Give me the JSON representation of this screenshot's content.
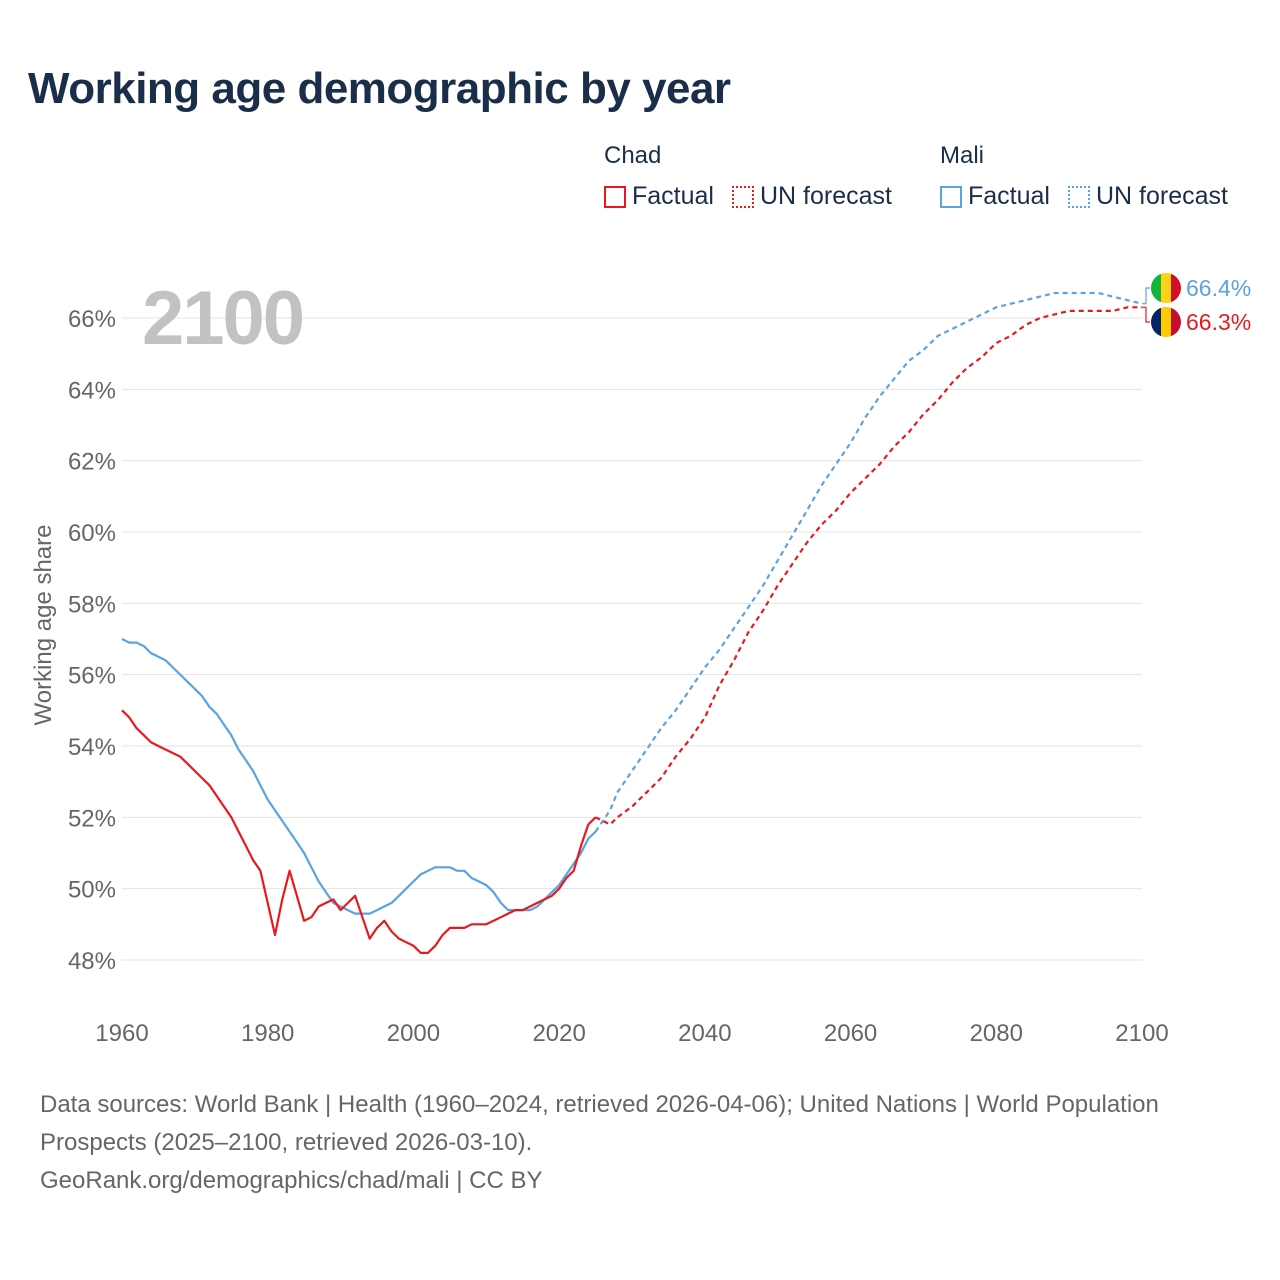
{
  "title": "Working age demographic by year",
  "legend": {
    "groups": [
      {
        "country": "Chad",
        "factual": "Factual",
        "forecast": "UN forecast",
        "color": "#e8191e"
      },
      {
        "country": "Mali",
        "factual": "Factual",
        "forecast": "UN forecast",
        "color": "#5ba3e0"
      }
    ]
  },
  "footer": {
    "sources": "Data sources: World Bank | Health (1960–2024, retrieved 2026-04-06); United Nations | World Population Prospects (2025–2100, retrieved 2026-03-10).",
    "credit": "GeoRank.org/demographics/chad/mali | CC BY"
  },
  "chart_data": {
    "type": "line",
    "title": "Working age demographic by year",
    "ylabel": "Working age share",
    "xlabel": "",
    "year_watermark": "2100",
    "xlim": [
      1960,
      2100
    ],
    "ylim": [
      47,
      67
    ],
    "xticks": [
      1960,
      1980,
      2000,
      2020,
      2040,
      2060,
      2080,
      2100
    ],
    "yticks": [
      48,
      50,
      52,
      54,
      56,
      58,
      60,
      62,
      64,
      66
    ],
    "ytick_labels": [
      "48%",
      "50%",
      "52%",
      "54%",
      "56%",
      "58%",
      "60%",
      "62%",
      "64%",
      "66%"
    ],
    "grid": true,
    "series": [
      {
        "name": "Chad",
        "color": "#e8191e",
        "end_label": "66.3%",
        "factual": [
          [
            1960,
            55.0
          ],
          [
            1961,
            54.8
          ],
          [
            1962,
            54.5
          ],
          [
            1963,
            54.3
          ],
          [
            1964,
            54.1
          ],
          [
            1965,
            54.0
          ],
          [
            1966,
            53.9
          ],
          [
            1967,
            53.8
          ],
          [
            1968,
            53.7
          ],
          [
            1969,
            53.5
          ],
          [
            1970,
            53.3
          ],
          [
            1971,
            53.1
          ],
          [
            1972,
            52.9
          ],
          [
            1973,
            52.6
          ],
          [
            1974,
            52.3
          ],
          [
            1975,
            52.0
          ],
          [
            1976,
            51.6
          ],
          [
            1977,
            51.2
          ],
          [
            1978,
            50.8
          ],
          [
            1979,
            50.5
          ],
          [
            1980,
            49.6
          ],
          [
            1981,
            48.7
          ],
          [
            1982,
            49.7
          ],
          [
            1983,
            50.5
          ],
          [
            1984,
            49.8
          ],
          [
            1985,
            49.1
          ],
          [
            1986,
            49.2
          ],
          [
            1987,
            49.5
          ],
          [
            1988,
            49.6
          ],
          [
            1989,
            49.7
          ],
          [
            1990,
            49.4
          ],
          [
            1991,
            49.6
          ],
          [
            1992,
            49.8
          ],
          [
            1993,
            49.2
          ],
          [
            1994,
            48.6
          ],
          [
            1995,
            48.9
          ],
          [
            1996,
            49.1
          ],
          [
            1997,
            48.8
          ],
          [
            1998,
            48.6
          ],
          [
            1999,
            48.5
          ],
          [
            2000,
            48.4
          ],
          [
            2001,
            48.2
          ],
          [
            2002,
            48.2
          ],
          [
            2003,
            48.4
          ],
          [
            2004,
            48.7
          ],
          [
            2005,
            48.9
          ],
          [
            2006,
            48.9
          ],
          [
            2007,
            48.9
          ],
          [
            2008,
            49.0
          ],
          [
            2009,
            49.0
          ],
          [
            2010,
            49.0
          ],
          [
            2011,
            49.1
          ],
          [
            2012,
            49.2
          ],
          [
            2013,
            49.3
          ],
          [
            2014,
            49.4
          ],
          [
            2015,
            49.4
          ],
          [
            2016,
            49.5
          ],
          [
            2017,
            49.6
          ],
          [
            2018,
            49.7
          ],
          [
            2019,
            49.8
          ],
          [
            2020,
            50.0
          ],
          [
            2021,
            50.3
          ],
          [
            2022,
            50.5
          ],
          [
            2023,
            51.2
          ],
          [
            2024,
            51.8
          ],
          [
            2025,
            52.0
          ]
        ],
        "forecast": [
          [
            2025,
            52.0
          ],
          [
            2026,
            51.9
          ],
          [
            2027,
            51.8
          ],
          [
            2028,
            52.0
          ],
          [
            2030,
            52.3
          ],
          [
            2032,
            52.7
          ],
          [
            2034,
            53.1
          ],
          [
            2036,
            53.7
          ],
          [
            2038,
            54.2
          ],
          [
            2040,
            54.8
          ],
          [
            2042,
            55.7
          ],
          [
            2044,
            56.4
          ],
          [
            2046,
            57.2
          ],
          [
            2048,
            57.8
          ],
          [
            2050,
            58.5
          ],
          [
            2052,
            59.1
          ],
          [
            2054,
            59.7
          ],
          [
            2056,
            60.2
          ],
          [
            2058,
            60.6
          ],
          [
            2060,
            61.1
          ],
          [
            2062,
            61.5
          ],
          [
            2064,
            61.9
          ],
          [
            2066,
            62.4
          ],
          [
            2068,
            62.8
          ],
          [
            2070,
            63.3
          ],
          [
            2072,
            63.7
          ],
          [
            2074,
            64.2
          ],
          [
            2076,
            64.6
          ],
          [
            2078,
            64.9
          ],
          [
            2080,
            65.3
          ],
          [
            2082,
            65.5
          ],
          [
            2084,
            65.8
          ],
          [
            2086,
            66.0
          ],
          [
            2088,
            66.1
          ],
          [
            2090,
            66.2
          ],
          [
            2092,
            66.2
          ],
          [
            2094,
            66.2
          ],
          [
            2096,
            66.2
          ],
          [
            2098,
            66.3
          ],
          [
            2100,
            66.3
          ]
        ]
      },
      {
        "name": "Mali",
        "color": "#5ba3e0",
        "end_label": "66.4%",
        "factual": [
          [
            1960,
            57.0
          ],
          [
            1961,
            56.9
          ],
          [
            1962,
            56.9
          ],
          [
            1963,
            56.8
          ],
          [
            1964,
            56.6
          ],
          [
            1965,
            56.5
          ],
          [
            1966,
            56.4
          ],
          [
            1967,
            56.2
          ],
          [
            1968,
            56.0
          ],
          [
            1969,
            55.8
          ],
          [
            1970,
            55.6
          ],
          [
            1971,
            55.4
          ],
          [
            1972,
            55.1
          ],
          [
            1973,
            54.9
          ],
          [
            1974,
            54.6
          ],
          [
            1975,
            54.3
          ],
          [
            1976,
            53.9
          ],
          [
            1977,
            53.6
          ],
          [
            1978,
            53.3
          ],
          [
            1979,
            52.9
          ],
          [
            1980,
            52.5
          ],
          [
            1981,
            52.2
          ],
          [
            1982,
            51.9
          ],
          [
            1983,
            51.6
          ],
          [
            1984,
            51.3
          ],
          [
            1985,
            51.0
          ],
          [
            1986,
            50.6
          ],
          [
            1987,
            50.2
          ],
          [
            1988,
            49.9
          ],
          [
            1989,
            49.6
          ],
          [
            1990,
            49.5
          ],
          [
            1991,
            49.4
          ],
          [
            1992,
            49.3
          ],
          [
            1993,
            49.3
          ],
          [
            1994,
            49.3
          ],
          [
            1995,
            49.4
          ],
          [
            1996,
            49.5
          ],
          [
            1997,
            49.6
          ],
          [
            1998,
            49.8
          ],
          [
            1999,
            50.0
          ],
          [
            2000,
            50.2
          ],
          [
            2001,
            50.4
          ],
          [
            2002,
            50.5
          ],
          [
            2003,
            50.6
          ],
          [
            2004,
            50.6
          ],
          [
            2005,
            50.6
          ],
          [
            2006,
            50.5
          ],
          [
            2007,
            50.5
          ],
          [
            2008,
            50.3
          ],
          [
            2009,
            50.2
          ],
          [
            2010,
            50.1
          ],
          [
            2011,
            49.9
          ],
          [
            2012,
            49.6
          ],
          [
            2013,
            49.4
          ],
          [
            2014,
            49.4
          ],
          [
            2015,
            49.4
          ],
          [
            2016,
            49.4
          ],
          [
            2017,
            49.5
          ],
          [
            2018,
            49.7
          ],
          [
            2019,
            49.9
          ],
          [
            2020,
            50.1
          ],
          [
            2021,
            50.4
          ],
          [
            2022,
            50.7
          ],
          [
            2023,
            51.0
          ],
          [
            2024,
            51.4
          ],
          [
            2025,
            51.6
          ]
        ],
        "forecast": [
          [
            2025,
            51.6
          ],
          [
            2026,
            51.9
          ],
          [
            2027,
            52.2
          ],
          [
            2028,
            52.7
          ],
          [
            2030,
            53.3
          ],
          [
            2032,
            53.9
          ],
          [
            2034,
            54.5
          ],
          [
            2036,
            55.0
          ],
          [
            2038,
            55.6
          ],
          [
            2040,
            56.2
          ],
          [
            2042,
            56.7
          ],
          [
            2044,
            57.3
          ],
          [
            2046,
            57.9
          ],
          [
            2048,
            58.5
          ],
          [
            2050,
            59.2
          ],
          [
            2052,
            59.9
          ],
          [
            2054,
            60.6
          ],
          [
            2056,
            61.3
          ],
          [
            2058,
            61.9
          ],
          [
            2060,
            62.5
          ],
          [
            2062,
            63.2
          ],
          [
            2064,
            63.8
          ],
          [
            2066,
            64.3
          ],
          [
            2068,
            64.8
          ],
          [
            2070,
            65.1
          ],
          [
            2072,
            65.5
          ],
          [
            2074,
            65.7
          ],
          [
            2076,
            65.9
          ],
          [
            2078,
            66.1
          ],
          [
            2080,
            66.3
          ],
          [
            2082,
            66.4
          ],
          [
            2084,
            66.5
          ],
          [
            2086,
            66.6
          ],
          [
            2088,
            66.7
          ],
          [
            2090,
            66.7
          ],
          [
            2092,
            66.7
          ],
          [
            2094,
            66.7
          ],
          [
            2096,
            66.6
          ],
          [
            2098,
            66.5
          ],
          [
            2100,
            66.4
          ]
        ]
      }
    ]
  }
}
